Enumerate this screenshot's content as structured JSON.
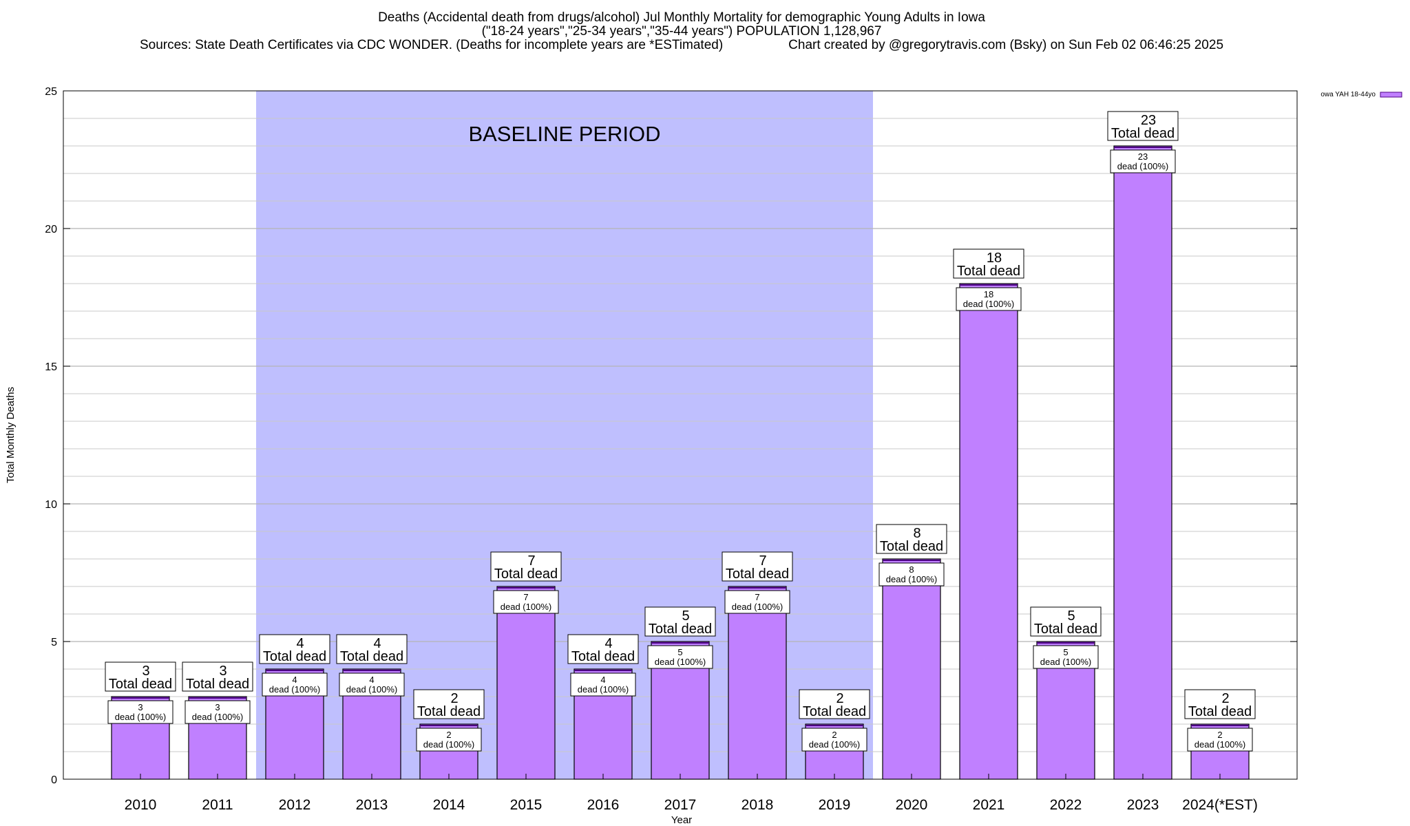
{
  "chart_data": {
    "type": "bar",
    "title": [
      "Deaths (Accidental death from drugs/alcohol) Jul Monthly Mortality for demographic Young Adults in Iowa",
      "(\"18-24 years\",\"25-34 years\",\"35-44 years\") POPULATION 1,128,967"
    ],
    "source_note": "Sources: State Death Certificates via CDC WONDER. (Deaths for incomplete years are *ESTimated)",
    "credit": "Chart created by @gregorytravis.com (Bsky) on Sun Feb 02 06:46:25 2025",
    "xlabel": "Year",
    "ylabel": "Total Monthly Deaths",
    "ylim": [
      0,
      25
    ],
    "yticks": [
      "0",
      "5",
      "10",
      "15",
      "20",
      "25"
    ],
    "grid": true,
    "legend": {
      "position": "top-right",
      "label": "owa YAH 18-44yo"
    },
    "categories": [
      "2010",
      "2011",
      "2012",
      "2013",
      "2014",
      "2015",
      "2016",
      "2017",
      "2018",
      "2019",
      "2020",
      "2021",
      "2022",
      "2023",
      "2024(*EST)"
    ],
    "series": [
      {
        "name": "owa YAH 18-44yo",
        "values": [
          3,
          3,
          4,
          4,
          2,
          7,
          4,
          5,
          7,
          2,
          8,
          18,
          5,
          23,
          2
        ]
      }
    ],
    "total_label": "Total dead",
    "inner_label_suffix": "dead (100%)",
    "baseline": {
      "label": "BASELINE PERIOD",
      "from": "2012",
      "to": "2019"
    }
  },
  "colors": {
    "bar_fill": "#c080ff",
    "bar_stroke": "#000000",
    "bar_top": "#4b0082",
    "baseline_fill": "#bfbffe",
    "grid": "#c8c8c8"
  }
}
